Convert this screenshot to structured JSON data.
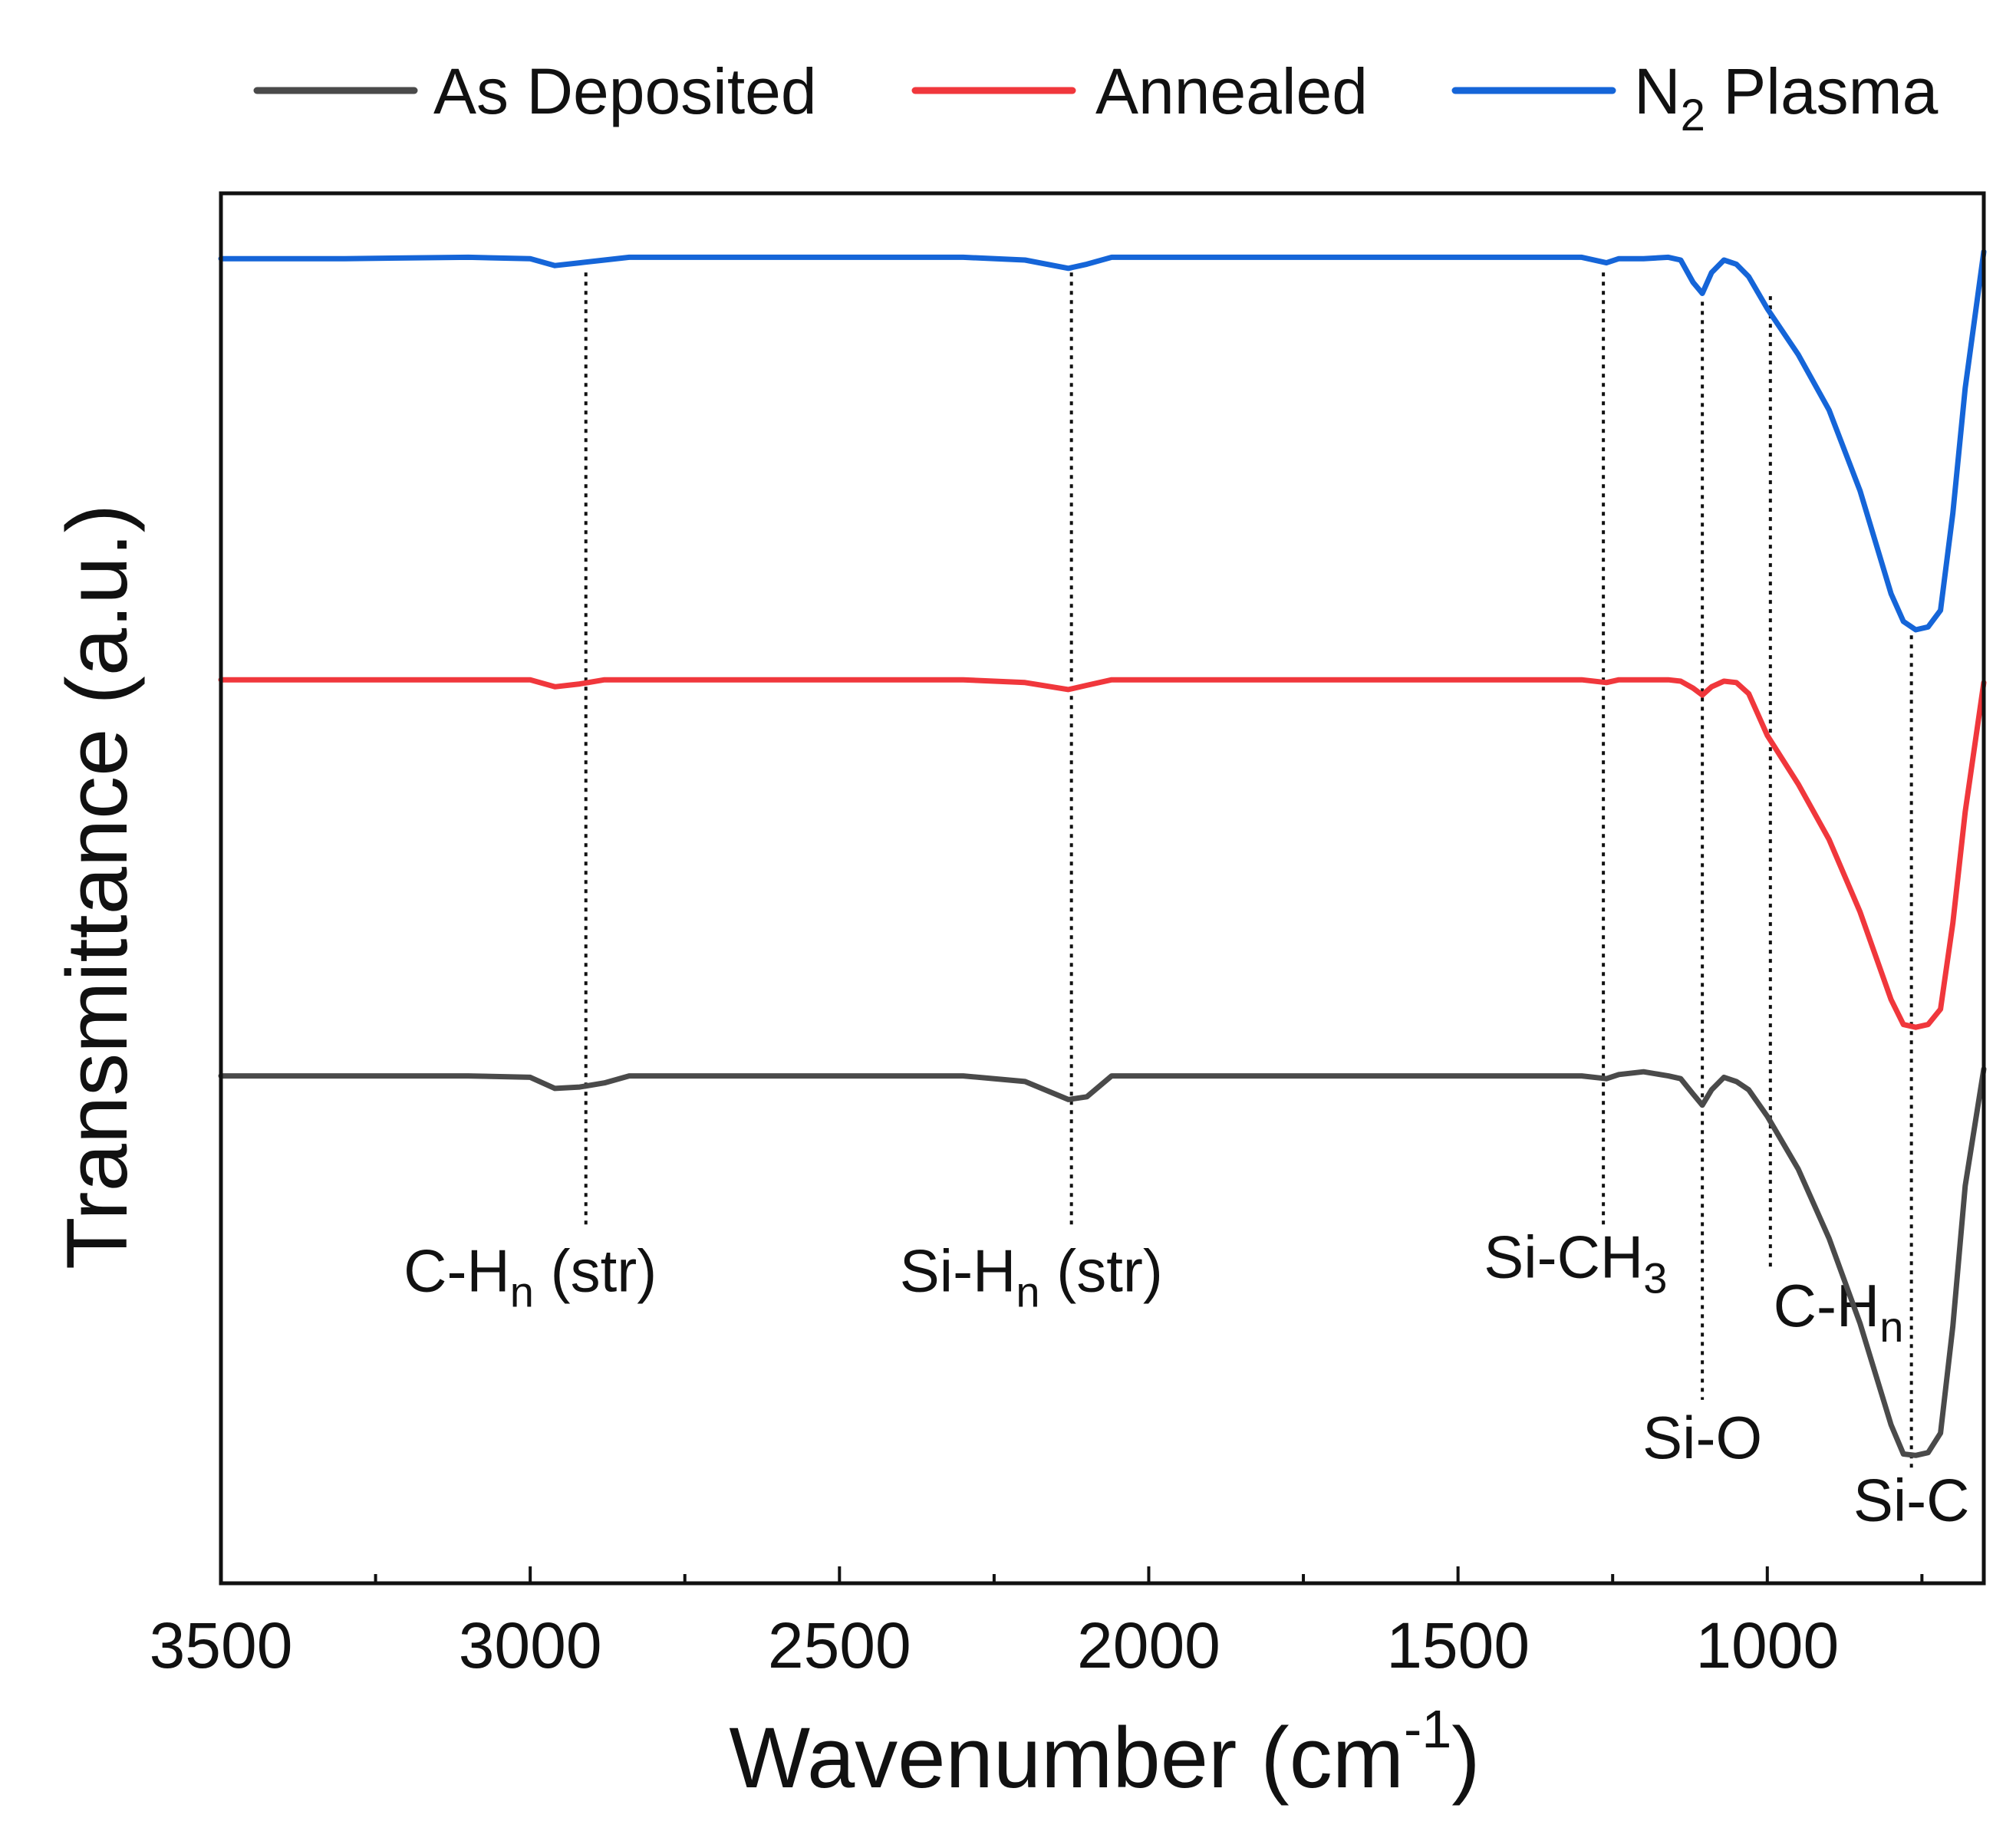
{
  "chart_data": {
    "type": "line",
    "xlabel": "Wavenumber (cm",
    "xlabel_sup": "-1",
    "xlabel_close": ")",
    "ylabel": "Transmittance (a.u.)",
    "xlim": [
      3500,
      650
    ],
    "x_reversed": true,
    "ylim": [
      0,
      100
    ],
    "y_ticks_shown": false,
    "grid": false,
    "legend_position": "top",
    "x_ticks": [
      3500,
      3000,
      2500,
      2000,
      1500,
      1000
    ],
    "x_tick_labels": [
      "3500",
      "3000",
      "2500",
      "2000",
      "1500",
      "1000"
    ],
    "x_minor_ticks": [
      3250,
      2750,
      2250,
      1750,
      1250,
      750
    ],
    "series": [
      {
        "name": "As Deposited",
        "color": "#4a4a4a",
        "x": [
          3500,
          3300,
          3100,
          3000,
          2960,
          2920,
          2880,
          2840,
          2800,
          2600,
          2400,
          2300,
          2200,
          2130,
          2100,
          2060,
          2000,
          1800,
          1600,
          1400,
          1300,
          1260,
          1240,
          1200,
          1160,
          1140,
          1120,
          1105,
          1090,
          1070,
          1050,
          1030,
          1000,
          950,
          900,
          850,
          800,
          780,
          760,
          740,
          720,
          700,
          680,
          650
        ],
        "y": [
          36.5,
          36.5,
          36.5,
          36.4,
          35.6,
          35.7,
          36,
          36.5,
          36.5,
          36.5,
          36.5,
          36.5,
          36.1,
          34.8,
          35,
          36.5,
          36.5,
          36.5,
          36.5,
          36.5,
          36.5,
          36.3,
          36.6,
          36.8,
          36.5,
          36.3,
          35.2,
          34.4,
          35.5,
          36.4,
          36.1,
          35.5,
          33.6,
          29.8,
          24.8,
          18.7,
          11.4,
          9.3,
          9.2,
          9.4,
          10.8,
          18.5,
          28.6,
          37
        ]
      },
      {
        "name": "Annealed",
        "color": "#f0373c",
        "x": [
          3500,
          3300,
          3100,
          3000,
          2960,
          2920,
          2880,
          2840,
          2800,
          2600,
          2400,
          2300,
          2200,
          2130,
          2100,
          2060,
          2000,
          1800,
          1600,
          1400,
          1300,
          1260,
          1240,
          1200,
          1160,
          1140,
          1120,
          1105,
          1090,
          1070,
          1050,
          1030,
          1000,
          950,
          900,
          850,
          800,
          780,
          760,
          740,
          720,
          700,
          680,
          650
        ],
        "y": [
          65,
          65,
          65,
          65,
          64.5,
          64.7,
          65,
          65,
          65,
          65,
          65,
          65,
          64.8,
          64.3,
          64.6,
          65,
          65,
          65,
          65,
          65,
          65,
          64.8,
          65,
          65,
          65,
          64.9,
          64.4,
          63.9,
          64.5,
          64.9,
          64.8,
          64,
          61,
          57.5,
          53.5,
          48.3,
          42,
          40.2,
          40,
          40.2,
          41.3,
          47.5,
          55.5,
          64.8
        ]
      },
      {
        "name": "N",
        "name_sub": "2",
        "name_suffix": " Plasma",
        "color": "#1565d8",
        "x": [
          3500,
          3300,
          3100,
          3000,
          2960,
          2920,
          2880,
          2840,
          2800,
          2600,
          2400,
          2300,
          2200,
          2130,
          2100,
          2060,
          2000,
          1800,
          1600,
          1400,
          1300,
          1260,
          1240,
          1200,
          1160,
          1140,
          1120,
          1105,
          1090,
          1070,
          1050,
          1030,
          1000,
          950,
          900,
          850,
          800,
          780,
          760,
          740,
          720,
          700,
          680,
          650
        ],
        "y": [
          95.3,
          95.3,
          95.4,
          95.3,
          94.8,
          95,
          95.2,
          95.4,
          95.4,
          95.4,
          95.4,
          95.4,
          95.2,
          94.6,
          94.9,
          95.4,
          95.4,
          95.4,
          95.4,
          95.4,
          95.4,
          95,
          95.3,
          95.3,
          95.4,
          95.2,
          93.6,
          92.8,
          94.3,
          95.2,
          94.9,
          94,
          91.7,
          88.4,
          84.4,
          78.6,
          71.2,
          69.2,
          68.6,
          68.8,
          70,
          77,
          86,
          95.8
        ]
      }
    ],
    "annotations": [
      {
        "text": "C-H",
        "sub": "n",
        "suffix": " (str)",
        "x": 2910,
        "line_top": 94.3,
        "line_bottom": 25.5,
        "label_x": 3000,
        "label_y": 21
      },
      {
        "text": "Si-H",
        "sub": "n",
        "suffix": " (str)",
        "x": 2125,
        "line_top": 94.3,
        "line_bottom": 25.5,
        "label_x": 2190,
        "label_y": 21
      },
      {
        "text": "Si-CH",
        "sub": "3",
        "suffix": "",
        "x": 1265,
        "line_top": 94.3,
        "line_bottom": 25.5,
        "label_x": 1310,
        "label_y": 22
      },
      {
        "text": "C-H",
        "sub": "n",
        "suffix": "",
        "x": 995,
        "line_top": 92.6,
        "line_bottom": 22.5,
        "label_x": 885,
        "label_y": 18.5
      },
      {
        "text": "Si-O",
        "sub": "",
        "suffix": "",
        "x": 1105,
        "line_top": 92.2,
        "line_bottom": 13.2,
        "label_x": 1105,
        "label_y": 9
      },
      {
        "text": "Si-C",
        "sub": "",
        "suffix": "",
        "x": 767,
        "line_top": 68.2,
        "line_bottom": 8.2,
        "label_x": 767,
        "label_y": 4.5
      }
    ]
  }
}
